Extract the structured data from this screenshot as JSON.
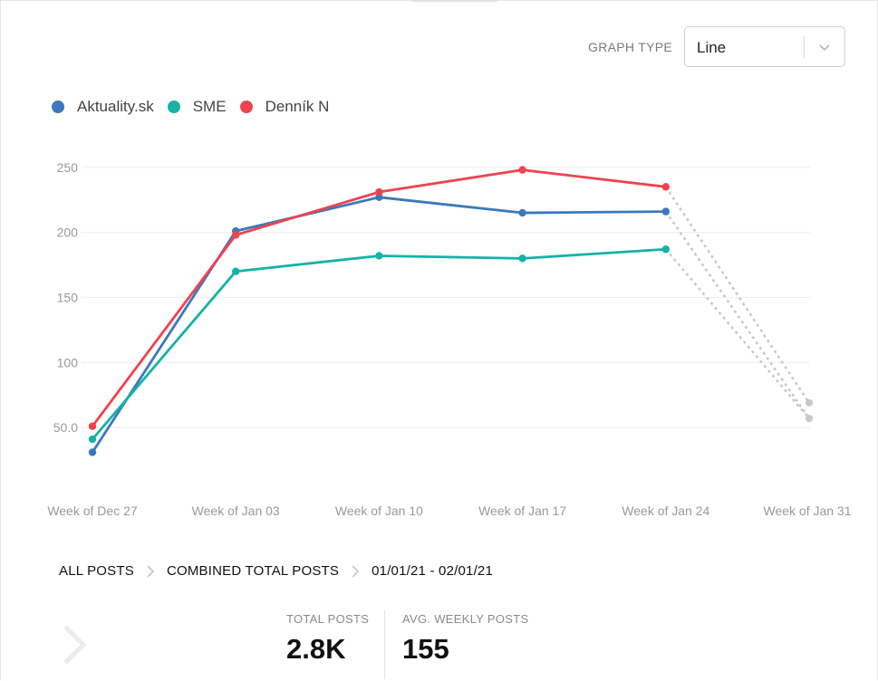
{
  "controls": {
    "graph_type_label": "GRAPH TYPE",
    "graph_type_value": "Line"
  },
  "icons": {
    "dropdown": "chevron-down-icon",
    "breadcrumb_separator": "chevron-right-icon",
    "next": "chevron-right-icon"
  },
  "chart_data": {
    "type": "line",
    "categories": [
      "Week of Dec 27",
      "Week of Jan 03",
      "Week of Jan 10",
      "Week of Jan 17",
      "Week of Jan 24",
      "Week of Jan 31"
    ],
    "y_ticks": [
      "250",
      "200",
      "150",
      "100",
      "50.0"
    ],
    "y_tick_values": [
      250,
      200,
      150,
      100,
      50
    ],
    "ylim": [
      0,
      270
    ],
    "grid": true,
    "legend_position": "top-left",
    "series": [
      {
        "name": "Aktuality.sk",
        "color": "#3b78bd",
        "values": [
          31,
          201,
          227,
          215,
          216,
          57
        ]
      },
      {
        "name": "SME",
        "color": "#14b3a6",
        "values": [
          41,
          170,
          182,
          180,
          187,
          57
        ]
      },
      {
        "name": "Denník N",
        "color": "#f0424f",
        "values": [
          51,
          198,
          231,
          248,
          235,
          69
        ]
      }
    ],
    "projection_color": "#c8c8c8",
    "title": "",
    "xlabel": "",
    "ylabel": ""
  },
  "breadcrumb": {
    "items": [
      "ALL POSTS",
      "COMBINED TOTAL POSTS",
      "01/01/21 - 02/01/21"
    ]
  },
  "stats": {
    "total_posts_label": "TOTAL POSTS",
    "total_posts_value": "2.8K",
    "avg_weekly_label": "AVG. WEEKLY POSTS",
    "avg_weekly_value": "155"
  }
}
